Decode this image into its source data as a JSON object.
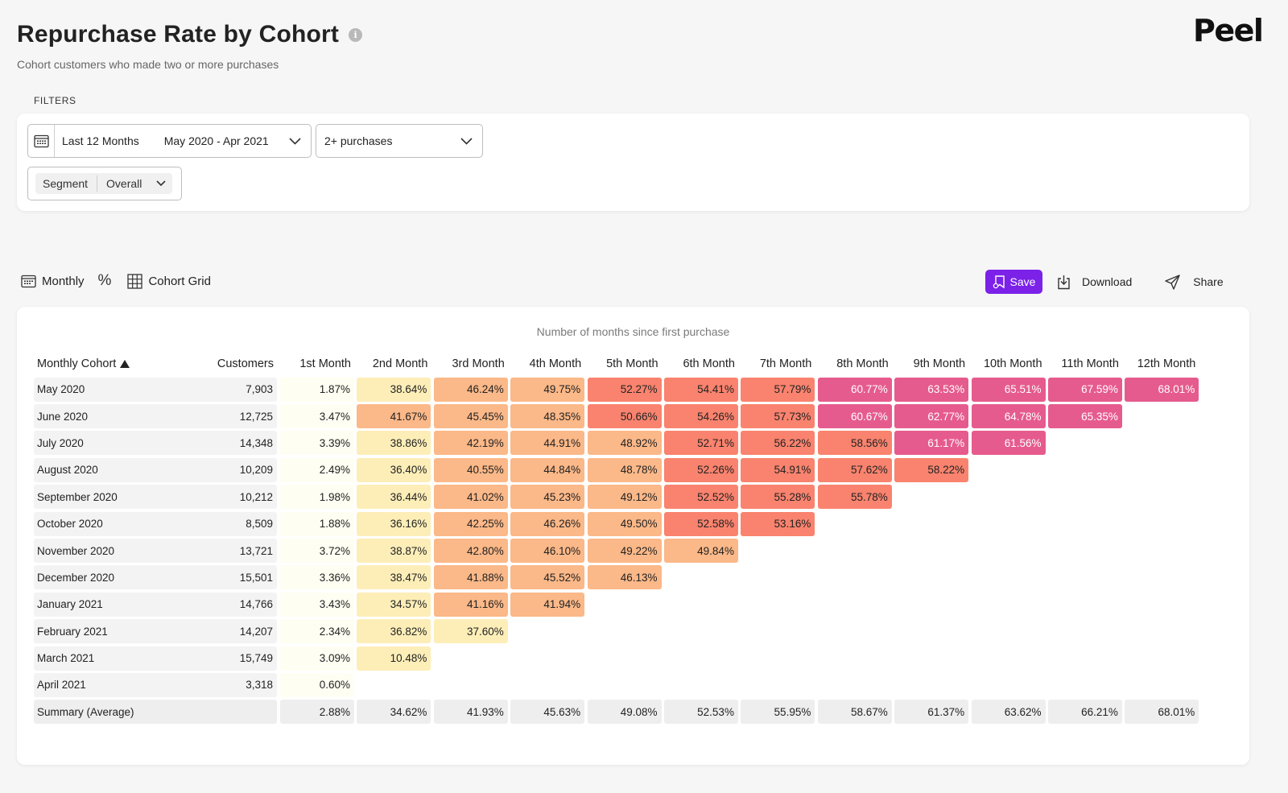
{
  "header": {
    "title": "Repurchase Rate by Cohort",
    "info_glyph": "i",
    "subtitle": "Cohort customers who made two or more purchases",
    "logo": "Peel"
  },
  "filters": {
    "label": "FILTERS",
    "date_preset": "Last 12 Months",
    "date_range": "May 2020 - Apr 2021",
    "purchases": "2+ purchases",
    "segment_label": "Segment",
    "segment_value": "Overall"
  },
  "toolbar": {
    "monthly": "Monthly",
    "percent": "%",
    "cohort_grid": "Cohort Grid",
    "save": "Save",
    "download": "Download",
    "share": "Share"
  },
  "colors": {
    "accent": "#7b21e8",
    "scale": [
      "#fffef2",
      "#fdeeb8",
      "#fbb888",
      "#f9836e",
      "#e65b8e"
    ]
  },
  "grid": {
    "axis_title": "Number of months since first purchase",
    "columns": [
      "Monthly Cohort",
      "Customers",
      "1st Month",
      "2nd Month",
      "3rd Month",
      "4th Month",
      "5th Month",
      "6th Month",
      "7th Month",
      "8th Month",
      "9th Month",
      "10th Month",
      "11th Month",
      "12th Month"
    ],
    "rows": [
      {
        "cohort": "May 2020",
        "customers": "7,903",
        "values": [
          "1.87%",
          "38.64%",
          "46.24%",
          "49.75%",
          "52.27%",
          "54.41%",
          "57.79%",
          "60.77%",
          "63.53%",
          "65.51%",
          "67.59%",
          "68.01%"
        ]
      },
      {
        "cohort": "June 2020",
        "customers": "12,725",
        "values": [
          "3.47%",
          "41.67%",
          "45.45%",
          "48.35%",
          "50.66%",
          "54.26%",
          "57.73%",
          "60.67%",
          "62.77%",
          "64.78%",
          "65.35%"
        ]
      },
      {
        "cohort": "July 2020",
        "customers": "14,348",
        "values": [
          "3.39%",
          "38.86%",
          "42.19%",
          "44.91%",
          "48.92%",
          "52.71%",
          "56.22%",
          "58.56%",
          "61.17%",
          "61.56%"
        ]
      },
      {
        "cohort": "August 2020",
        "customers": "10,209",
        "values": [
          "2.49%",
          "36.40%",
          "40.55%",
          "44.84%",
          "48.78%",
          "52.26%",
          "54.91%",
          "57.62%",
          "58.22%"
        ]
      },
      {
        "cohort": "September 2020",
        "customers": "10,212",
        "values": [
          "1.98%",
          "36.44%",
          "41.02%",
          "45.23%",
          "49.12%",
          "52.52%",
          "55.28%",
          "55.78%"
        ]
      },
      {
        "cohort": "October 2020",
        "customers": "8,509",
        "values": [
          "1.88%",
          "36.16%",
          "42.25%",
          "46.26%",
          "49.50%",
          "52.58%",
          "53.16%"
        ]
      },
      {
        "cohort": "November 2020",
        "customers": "13,721",
        "values": [
          "3.72%",
          "38.87%",
          "42.80%",
          "46.10%",
          "49.22%",
          "49.84%"
        ]
      },
      {
        "cohort": "December 2020",
        "customers": "15,501",
        "values": [
          "3.36%",
          "38.47%",
          "41.88%",
          "45.52%",
          "46.13%"
        ]
      },
      {
        "cohort": "January 2021",
        "customers": "14,766",
        "values": [
          "3.43%",
          "34.57%",
          "41.16%",
          "41.94%"
        ]
      },
      {
        "cohort": "February 2021",
        "customers": "14,207",
        "values": [
          "2.34%",
          "36.82%",
          "37.60%"
        ]
      },
      {
        "cohort": "March 2021",
        "customers": "15,749",
        "values": [
          "3.09%",
          "10.48%"
        ]
      },
      {
        "cohort": "April 2021",
        "customers": "3,318",
        "values": [
          "0.60%"
        ]
      }
    ],
    "summary": {
      "label": "Summary (Average)",
      "values": [
        "2.88%",
        "34.62%",
        "41.93%",
        "45.63%",
        "49.08%",
        "52.53%",
        "55.95%",
        "58.67%",
        "61.37%",
        "63.62%",
        "66.21%",
        "68.01%"
      ]
    }
  }
}
